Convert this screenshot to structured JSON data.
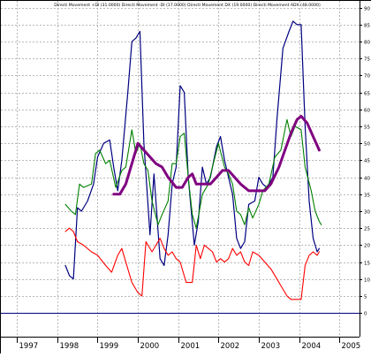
{
  "chart_data": {
    "type": "line",
    "title": "Directi Movement +DI (31.0000) Directi Movement -DI (17.0000) Directi Movement DX (19.0000) Directi Movement ADX (48.0000)",
    "xlabel": "",
    "ylabel": "",
    "x_ticks": [
      "1997",
      "1998",
      "1999",
      "2000",
      "2001",
      "2002",
      "2003",
      "2004",
      "2005"
    ],
    "x_range": [
      1996.6,
      2005.5
    ],
    "y_ticks": [
      0,
      5,
      10,
      15,
      20,
      25,
      30,
      35,
      40,
      45,
      50,
      55,
      60,
      65,
      70,
      75,
      80,
      85,
      90
    ],
    "y_tick_labels": [
      "0",
      "5",
      "10",
      "15",
      "20",
      "25",
      "30",
      "35",
      "40",
      "45",
      "50",
      "55",
      "60",
      "65",
      "70",
      "75",
      "80",
      "85",
      "90"
    ],
    "ylim": [
      -7,
      92
    ],
    "zero_line": 0,
    "grid": true,
    "series": [
      {
        "color": "#000080",
        "points": [
          [
            1998.2,
            14
          ],
          [
            1998.3,
            11
          ],
          [
            1998.4,
            10
          ],
          [
            1998.5,
            31
          ],
          [
            1998.6,
            30
          ],
          [
            1998.75,
            33
          ],
          [
            1998.9,
            38
          ],
          [
            1999.0,
            46
          ],
          [
            1999.15,
            50
          ],
          [
            1999.3,
            51
          ],
          [
            1999.4,
            43
          ],
          [
            1999.5,
            36
          ],
          [
            1999.6,
            45
          ],
          [
            1999.75,
            65
          ],
          [
            1999.85,
            80
          ],
          [
            1999.95,
            81
          ],
          [
            2000.05,
            83
          ],
          [
            2000.15,
            50
          ],
          [
            2000.3,
            23
          ],
          [
            2000.4,
            41
          ],
          [
            2000.55,
            16
          ],
          [
            2000.65,
            14
          ],
          [
            2000.75,
            23
          ],
          [
            2000.85,
            38
          ],
          [
            2000.95,
            43
          ],
          [
            2001.05,
            67
          ],
          [
            2001.15,
            65
          ],
          [
            2001.25,
            40
          ],
          [
            2001.4,
            20
          ],
          [
            2001.5,
            27
          ],
          [
            2001.6,
            43
          ],
          [
            2001.7,
            38
          ],
          [
            2001.8,
            40
          ],
          [
            2001.95,
            49
          ],
          [
            2002.05,
            52
          ],
          [
            2002.15,
            45
          ],
          [
            2002.25,
            40
          ],
          [
            2002.35,
            35
          ],
          [
            2002.45,
            22
          ],
          [
            2002.55,
            19
          ],
          [
            2002.65,
            21
          ],
          [
            2002.75,
            32
          ],
          [
            2002.9,
            33
          ],
          [
            2003.0,
            40
          ],
          [
            2003.1,
            38
          ],
          [
            2003.2,
            37
          ],
          [
            2003.35,
            40
          ],
          [
            2003.45,
            57
          ],
          [
            2003.6,
            78
          ],
          [
            2003.75,
            83
          ],
          [
            2003.85,
            86
          ],
          [
            2003.95,
            85
          ],
          [
            2004.05,
            85
          ],
          [
            2004.15,
            55
          ],
          [
            2004.25,
            33
          ],
          [
            2004.35,
            22
          ],
          [
            2004.45,
            18
          ],
          [
            2004.5,
            19
          ]
        ]
      },
      {
        "color": "#008000",
        "points": [
          [
            1998.2,
            32
          ],
          [
            1998.35,
            30
          ],
          [
            1998.45,
            29
          ],
          [
            1998.55,
            38
          ],
          [
            1998.65,
            37
          ],
          [
            1998.85,
            38
          ],
          [
            1998.95,
            47
          ],
          [
            1999.05,
            48
          ],
          [
            1999.2,
            44
          ],
          [
            1999.3,
            45
          ],
          [
            1999.45,
            37
          ],
          [
            1999.6,
            42
          ],
          [
            1999.7,
            43
          ],
          [
            1999.85,
            54
          ],
          [
            1999.95,
            47
          ],
          [
            2000.05,
            50
          ],
          [
            2000.15,
            44
          ],
          [
            2000.25,
            42
          ],
          [
            2000.35,
            33
          ],
          [
            2000.5,
            26
          ],
          [
            2000.6,
            29
          ],
          [
            2000.75,
            33
          ],
          [
            2000.85,
            44
          ],
          [
            2000.95,
            44
          ],
          [
            2001.05,
            52
          ],
          [
            2001.15,
            53
          ],
          [
            2001.25,
            40
          ],
          [
            2001.35,
            29
          ],
          [
            2001.45,
            25
          ],
          [
            2001.6,
            35
          ],
          [
            2001.75,
            38
          ],
          [
            2001.85,
            43
          ],
          [
            2002.0,
            50
          ],
          [
            2002.15,
            43
          ],
          [
            2002.25,
            41
          ],
          [
            2002.35,
            38
          ],
          [
            2002.45,
            30
          ],
          [
            2002.55,
            29
          ],
          [
            2002.65,
            26
          ],
          [
            2002.75,
            31
          ],
          [
            2002.85,
            28
          ],
          [
            2003.0,
            32
          ],
          [
            2003.1,
            36
          ],
          [
            2003.25,
            38
          ],
          [
            2003.4,
            46
          ],
          [
            2003.55,
            48
          ],
          [
            2003.7,
            57
          ],
          [
            2003.8,
            52
          ],
          [
            2003.9,
            55
          ],
          [
            2004.05,
            54
          ],
          [
            2004.15,
            43
          ],
          [
            2004.3,
            36
          ],
          [
            2004.4,
            30
          ],
          [
            2004.5,
            27
          ],
          [
            2004.55,
            26
          ]
        ]
      },
      {
        "color": "#ff0000",
        "points": [
          [
            1998.2,
            24
          ],
          [
            1998.3,
            25
          ],
          [
            1998.4,
            24
          ],
          [
            1998.5,
            21
          ],
          [
            1998.65,
            20
          ],
          [
            1998.85,
            18
          ],
          [
            1999.0,
            17
          ],
          [
            1999.2,
            14
          ],
          [
            1999.35,
            12
          ],
          [
            1999.5,
            17
          ],
          [
            1999.6,
            19
          ],
          [
            1999.75,
            13
          ],
          [
            1999.85,
            9
          ],
          [
            2000.0,
            6
          ],
          [
            2000.1,
            5
          ],
          [
            2000.2,
            21
          ],
          [
            2000.35,
            18
          ],
          [
            2000.45,
            20
          ],
          [
            2000.55,
            22
          ],
          [
            2000.65,
            19
          ],
          [
            2000.75,
            17
          ],
          [
            2000.85,
            18
          ],
          [
            2000.95,
            16
          ],
          [
            2001.05,
            15
          ],
          [
            2001.2,
            9
          ],
          [
            2001.35,
            9
          ],
          [
            2001.45,
            20
          ],
          [
            2001.55,
            16
          ],
          [
            2001.65,
            20
          ],
          [
            2001.75,
            19
          ],
          [
            2001.85,
            18
          ],
          [
            2001.95,
            15
          ],
          [
            2002.05,
            16
          ],
          [
            2002.15,
            15
          ],
          [
            2002.25,
            16
          ],
          [
            2002.35,
            19
          ],
          [
            2002.45,
            17
          ],
          [
            2002.55,
            18
          ],
          [
            2002.65,
            15
          ],
          [
            2002.75,
            14
          ],
          [
            2002.85,
            18
          ],
          [
            2003.0,
            17
          ],
          [
            2003.15,
            15
          ],
          [
            2003.3,
            13
          ],
          [
            2003.45,
            10
          ],
          [
            2003.55,
            8
          ],
          [
            2003.7,
            5
          ],
          [
            2003.8,
            4
          ],
          [
            2003.95,
            4
          ],
          [
            2004.05,
            4
          ],
          [
            2004.15,
            14
          ],
          [
            2004.25,
            17
          ],
          [
            2004.35,
            18
          ],
          [
            2004.45,
            17
          ],
          [
            2004.5,
            18
          ]
        ]
      },
      {
        "color": "#800080",
        "points": [
          [
            1999.4,
            35
          ],
          [
            1999.55,
            35
          ],
          [
            1999.7,
            38
          ],
          [
            1999.85,
            44
          ],
          [
            2000.0,
            50
          ],
          [
            2000.15,
            48
          ],
          [
            2000.3,
            46
          ],
          [
            2000.45,
            44
          ],
          [
            2000.6,
            43
          ],
          [
            2000.75,
            40
          ],
          [
            2000.95,
            37
          ],
          [
            2001.1,
            37
          ],
          [
            2001.25,
            40
          ],
          [
            2001.35,
            41
          ],
          [
            2001.45,
            38
          ],
          [
            2001.65,
            38
          ],
          [
            2001.8,
            38
          ],
          [
            2001.95,
            40
          ],
          [
            2002.1,
            42
          ],
          [
            2002.25,
            42
          ],
          [
            2002.4,
            40
          ],
          [
            2002.55,
            38
          ],
          [
            2002.75,
            36
          ],
          [
            2002.95,
            36
          ],
          [
            2003.15,
            36
          ],
          [
            2003.3,
            38
          ],
          [
            2003.5,
            43
          ],
          [
            2003.65,
            48
          ],
          [
            2003.8,
            53
          ],
          [
            2003.95,
            57
          ],
          [
            2004.05,
            58
          ],
          [
            2004.2,
            56
          ],
          [
            2004.35,
            52
          ],
          [
            2004.5,
            48
          ]
        ]
      }
    ]
  }
}
